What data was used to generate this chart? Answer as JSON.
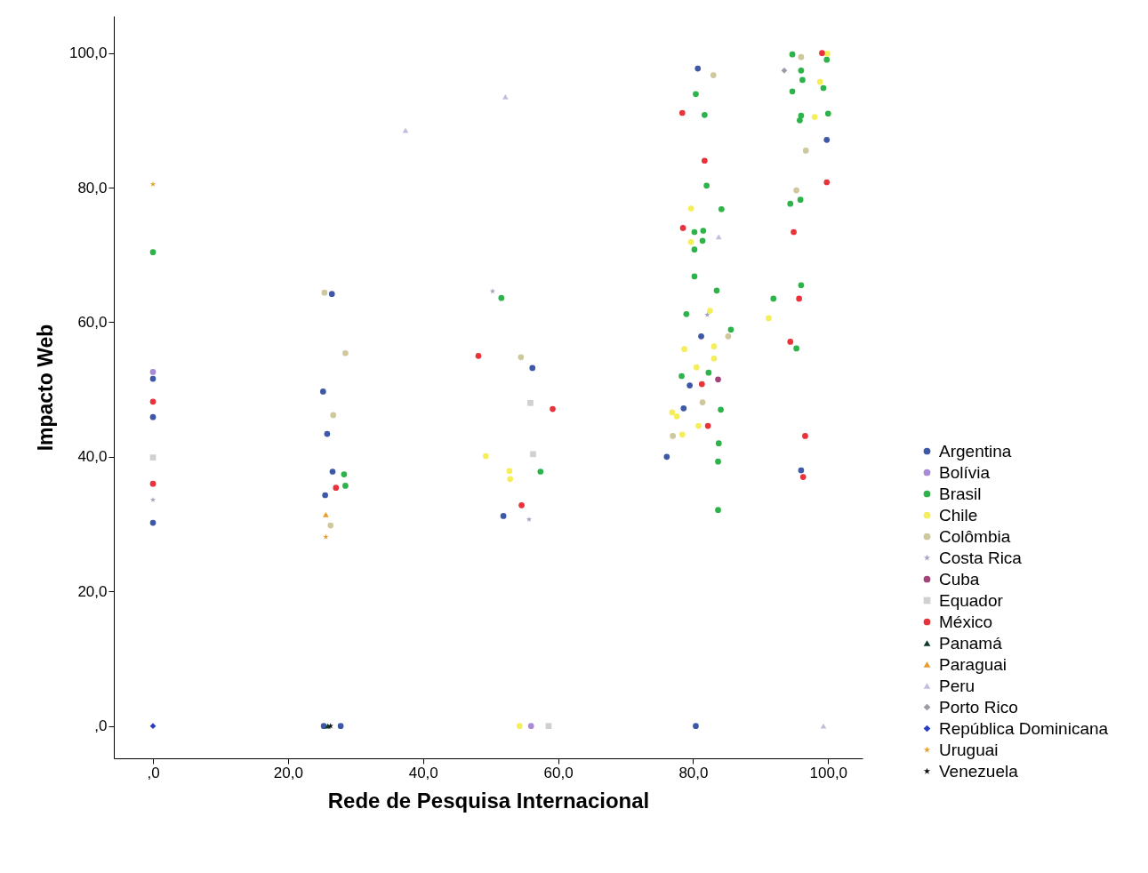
{
  "chart_data": {
    "type": "scatter",
    "xlabel": "Rede de Pesquisa Internacional",
    "ylabel": "Impacto Web",
    "xlim": [
      -5.8,
      105.1
    ],
    "ylim": [
      -4.8,
      105.5
    ],
    "xticks": [
      {
        "value": 0,
        "label": ",0"
      },
      {
        "value": 20,
        "label": "20,0"
      },
      {
        "value": 40,
        "label": "40,0"
      },
      {
        "value": 60,
        "label": "60,0"
      },
      {
        "value": 80,
        "label": "80,0"
      },
      {
        "value": 100,
        "label": "100,0"
      }
    ],
    "yticks": [
      {
        "value": 0,
        "label": ",0"
      },
      {
        "value": 20,
        "label": "20,0"
      },
      {
        "value": 40,
        "label": "40,0"
      },
      {
        "value": 60,
        "label": "60,0"
      },
      {
        "value": 80,
        "label": "80,0"
      },
      {
        "value": 100,
        "label": "100,0"
      }
    ],
    "legend": "right",
    "series": [
      {
        "name": "Argentina",
        "color": "#3e58a8",
        "marker": "circle",
        "x": [
          0,
          0,
          0,
          26.5,
          25.2,
          25.8,
          26.6,
          25.5,
          27.8,
          25.3,
          56.2,
          51.9,
          80.7,
          99.8,
          81.2,
          79.5,
          78.6,
          76.1,
          96.0,
          80.4
        ],
        "values": [
          51.6,
          45.9,
          30.2,
          64.2,
          49.7,
          43.4,
          37.8,
          34.3,
          0,
          0,
          53.2,
          31.2,
          97.7,
          87.1,
          57.9,
          50.6,
          47.2,
          40.0,
          38.0,
          0
        ]
      },
      {
        "name": "Bolívia",
        "color": "#a98ad6",
        "marker": "circle",
        "x": [
          0,
          56.0
        ],
        "values": [
          52.6,
          0
        ]
      },
      {
        "name": "Brasil",
        "color": "#2db34a",
        "marker": "circle",
        "x": [
          0,
          28.3,
          28.5,
          51.6,
          57.4,
          94.7,
          99.8,
          96.0,
          96.2,
          94.7,
          80.4,
          99.3,
          81.7,
          96.0,
          95.8,
          100.0,
          82.0,
          95.9,
          94.4,
          84.2,
          80.2,
          81.5,
          81.4,
          80.2,
          80.2,
          83.5,
          91.9,
          96.0,
          79.0,
          85.6,
          95.3,
          78.3,
          82.3,
          84.1,
          83.8,
          83.7,
          83.7
        ],
        "values": [
          70.4,
          37.4,
          35.7,
          63.6,
          37.8,
          99.8,
          99.0,
          97.4,
          96.0,
          94.3,
          93.9,
          94.8,
          90.8,
          90.7,
          90.0,
          91.0,
          80.3,
          78.2,
          77.6,
          76.8,
          73.4,
          73.6,
          72.1,
          70.8,
          66.8,
          64.7,
          63.5,
          65.5,
          61.2,
          58.9,
          56.1,
          52.0,
          52.5,
          47.0,
          42.0,
          39.3,
          32.1
        ]
      },
      {
        "name": "Chile",
        "color": "#f4ee5a",
        "marker": "circle",
        "x": [
          49.3,
          52.8,
          52.9,
          54.3,
          99.9,
          98.8,
          98.0,
          79.7,
          79.7,
          82.5,
          91.2,
          78.7,
          83.1,
          83.1,
          80.5,
          76.9,
          77.6,
          80.8,
          78.4
        ],
        "values": [
          40.1,
          37.9,
          36.7,
          0,
          99.9,
          95.7,
          90.5,
          76.9,
          71.9,
          61.7,
          60.6,
          56.0,
          56.4,
          54.6,
          53.3,
          46.6,
          46.0,
          44.6,
          43.3
        ]
      },
      {
        "name": "Colômbia",
        "color": "#cfc89c",
        "marker": "circle",
        "x": [
          25.4,
          28.5,
          26.7,
          26.3,
          54.5,
          96.0,
          83.0,
          96.7,
          95.3,
          85.2,
          81.4,
          77.0
        ],
        "values": [
          64.4,
          55.4,
          46.2,
          29.8,
          54.8,
          99.4,
          96.7,
          85.5,
          79.6,
          57.9,
          48.1,
          43.1
        ]
      },
      {
        "name": "Costa Rica",
        "color": "#a9a3c3",
        "marker": "star",
        "x": [
          0,
          50.3,
          55.7,
          82.1
        ],
        "values": [
          33.6,
          64.6,
          30.7,
          61.1
        ]
      },
      {
        "name": "Cuba",
        "color": "#a2447a",
        "marker": "circle",
        "x": [
          83.7
        ],
        "values": [
          51.5
        ]
      },
      {
        "name": "Equador",
        "color": "#d0d0d0",
        "marker": "square",
        "x": [
          0,
          55.9,
          56.3,
          58.6
        ],
        "values": [
          39.9,
          48.0,
          40.4,
          0
        ]
      },
      {
        "name": "México",
        "color": "#e8333a",
        "marker": "circle",
        "x": [
          0,
          0,
          27.1,
          48.2,
          59.2,
          54.6,
          99.1,
          78.4,
          81.7,
          99.8,
          78.5,
          94.9,
          95.7,
          94.4,
          81.3,
          82.2,
          96.6,
          96.3
        ],
        "values": [
          48.2,
          36.0,
          35.4,
          55.0,
          47.1,
          32.8,
          100.0,
          91.1,
          84.0,
          80.8,
          74.0,
          73.4,
          63.5,
          57.1,
          50.8,
          44.6,
          43.1,
          37.0
        ]
      },
      {
        "name": "Panamá",
        "color": "#0d3b2a",
        "marker": "triangle",
        "x": [
          25.9
        ],
        "values": [
          0
        ]
      },
      {
        "name": "Paraguai",
        "color": "#e89a2a",
        "marker": "triangle",
        "x": [
          25.6
        ],
        "values": [
          31.4
        ]
      },
      {
        "name": "Peru",
        "color": "#c4bcdc",
        "marker": "triangle",
        "x": [
          52.2,
          37.4,
          83.8,
          99.3
        ],
        "values": [
          93.5,
          88.5,
          72.7,
          0
        ]
      },
      {
        "name": "Porto Rico",
        "color": "#9b9ba5",
        "marker": "diamond",
        "x": [
          93.5
        ],
        "values": [
          97.4
        ]
      },
      {
        "name": "República Dominicana",
        "color": "#2a3fc0",
        "marker": "diamond",
        "x": [
          0
        ],
        "values": [
          0
        ]
      },
      {
        "name": "Uruguai",
        "color": "#e8a030",
        "marker": "star",
        "x": [
          0,
          25.6
        ],
        "values": [
          80.5,
          28.1
        ]
      },
      {
        "name": "Venezuela",
        "color": "#111111",
        "marker": "star",
        "x": [
          26.3
        ],
        "values": [
          0
        ]
      }
    ]
  }
}
